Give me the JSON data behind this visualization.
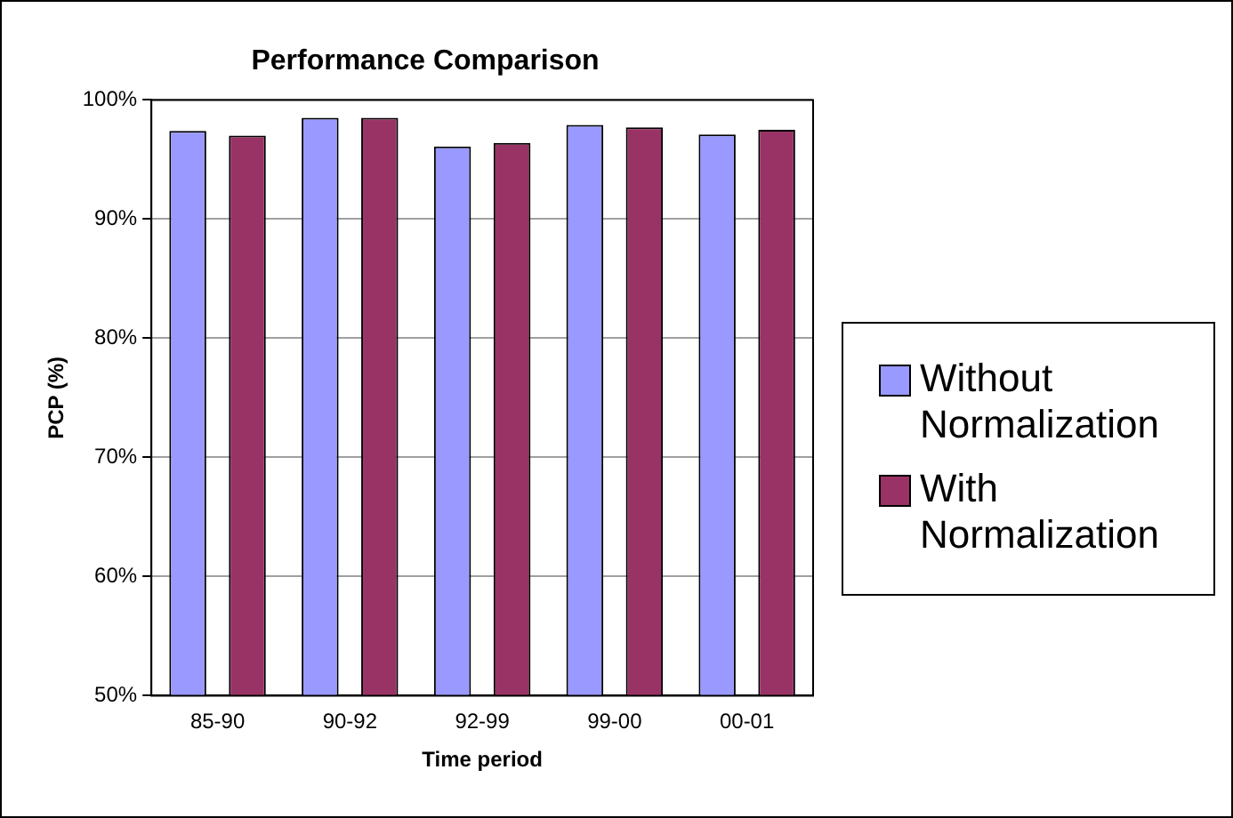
{
  "chart_data": {
    "type": "bar",
    "title": "Performance Comparison",
    "xlabel": "Time period",
    "ylabel": "PCP (%)",
    "categories": [
      "85-90",
      "90-92",
      "92-99",
      "99-00",
      "00-01"
    ],
    "series": [
      {
        "name": "Without Normalization",
        "color": "#9999ff",
        "values": [
          97.4,
          98.5,
          96.1,
          97.9,
          97.1
        ]
      },
      {
        "name": "With Normalization",
        "color": "#993366",
        "values": [
          97.0,
          98.5,
          96.4,
          97.7,
          97.5
        ]
      }
    ],
    "ylim": [
      50,
      100
    ],
    "yticks": [
      {
        "value": 50,
        "label": "50%"
      },
      {
        "value": 60,
        "label": "60%"
      },
      {
        "value": 70,
        "label": "70%"
      },
      {
        "value": 80,
        "label": "80%"
      },
      {
        "value": 90,
        "label": "90%"
      },
      {
        "value": 100,
        "label": "100%"
      }
    ],
    "grid": "y",
    "legend": "right"
  }
}
